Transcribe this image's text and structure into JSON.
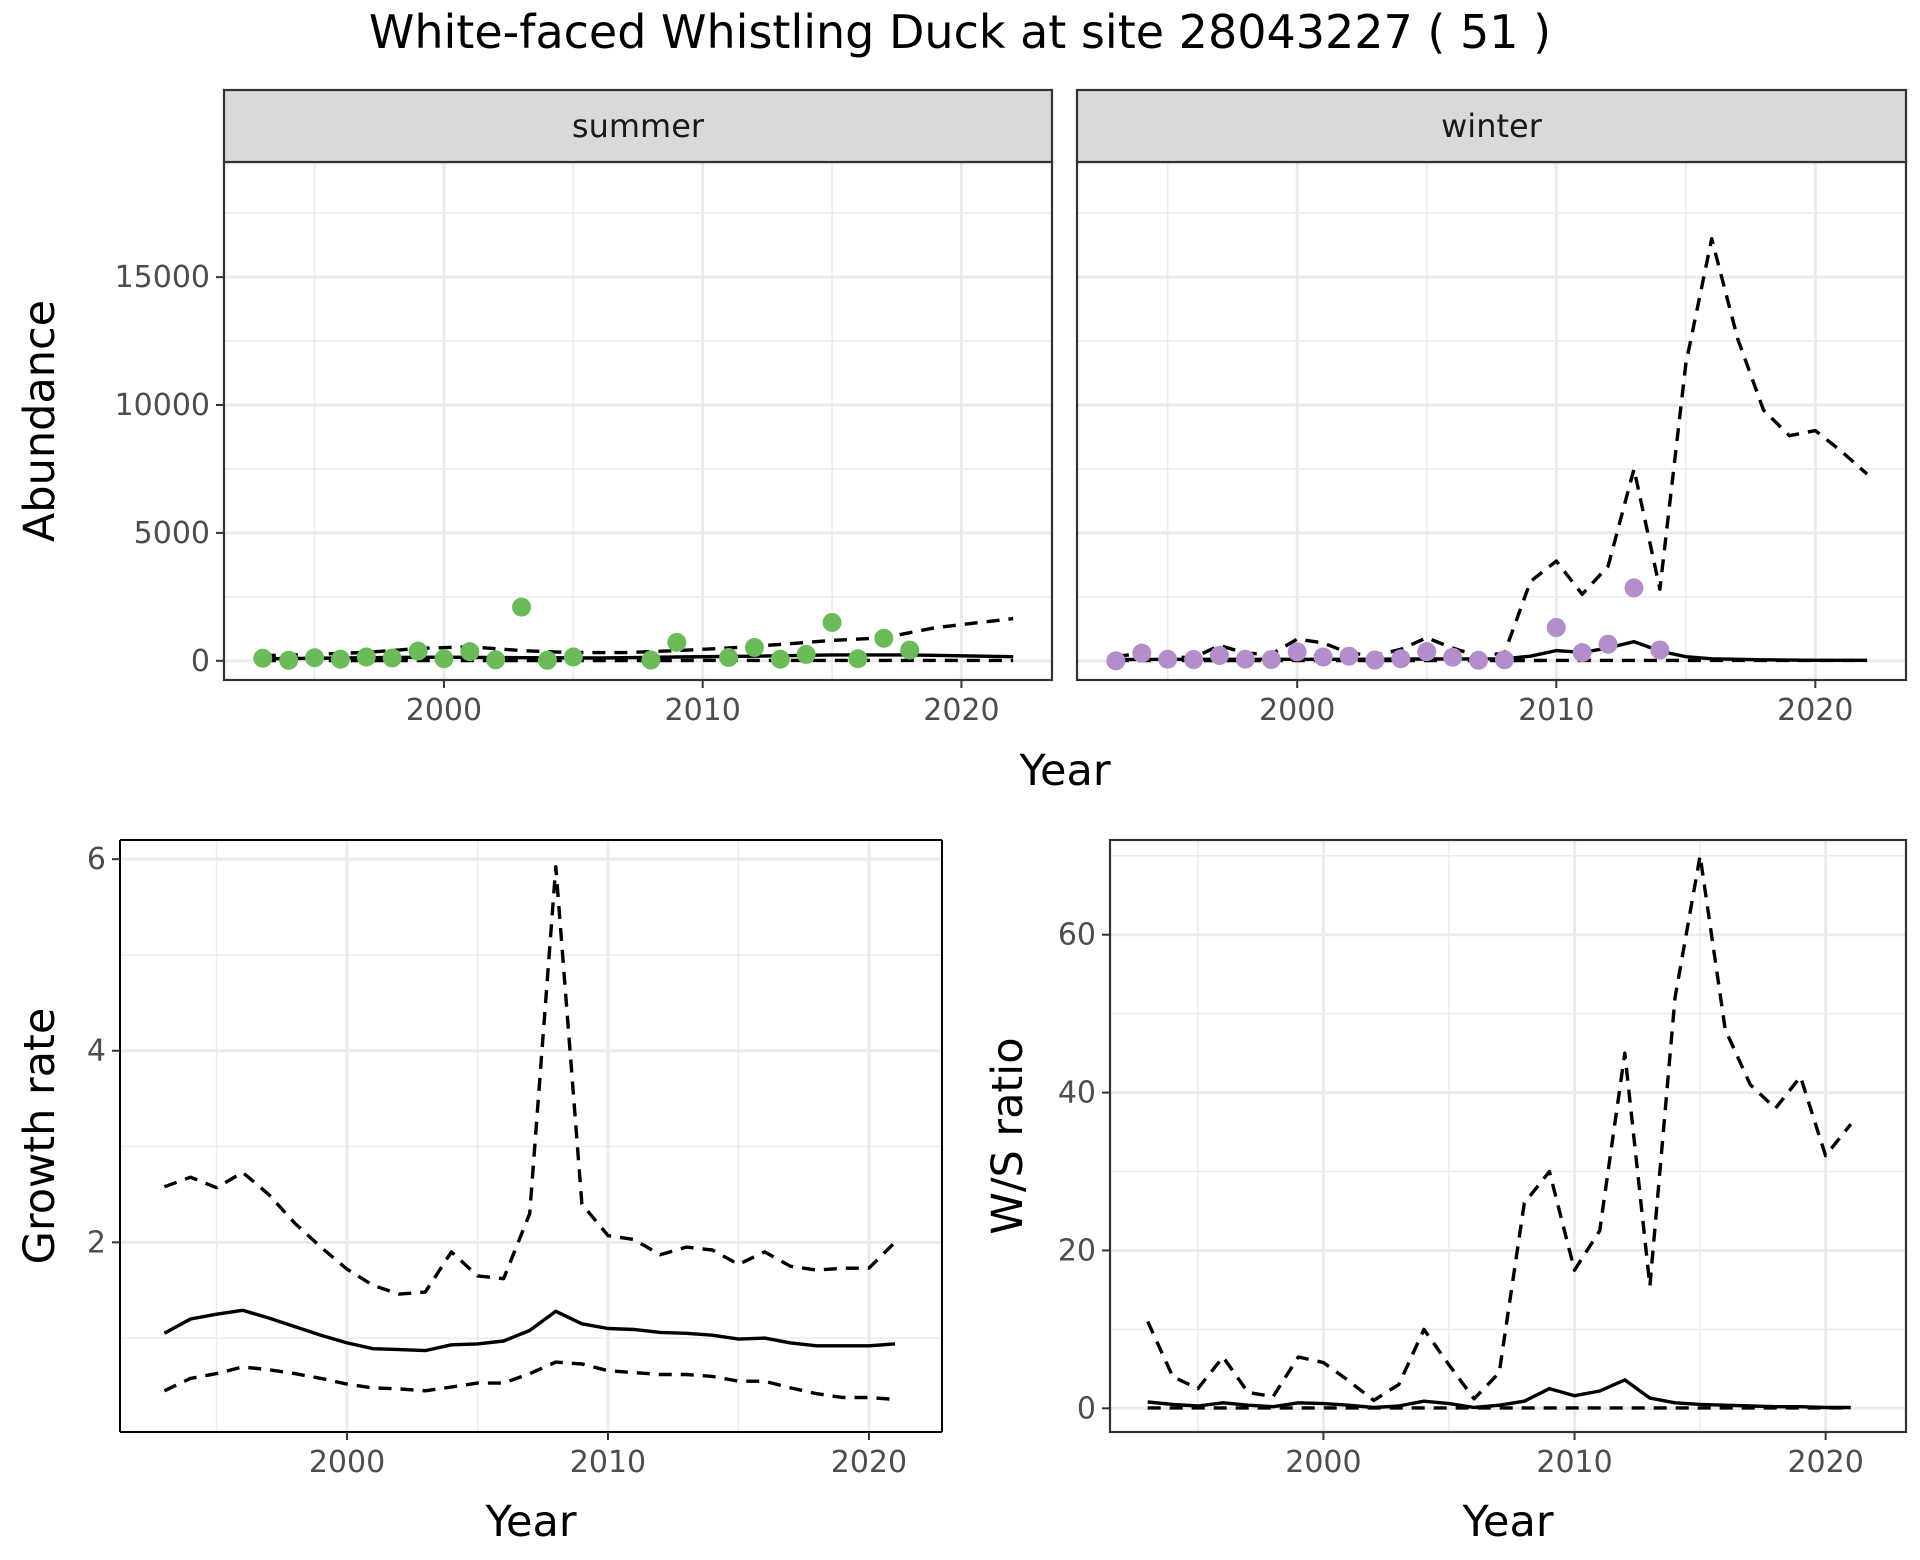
{
  "figure": {
    "title": "White-faced Whistling Duck at site 28043227 ( 51 )"
  },
  "chart_data": [
    {
      "type": "line",
      "facet": "summer",
      "facet_label": "summer",
      "xlabel": "Year",
      "ylabel": "Abundance",
      "xlim": [
        1991.5,
        2023.5
      ],
      "ylim": [
        -750,
        19500
      ],
      "xticks": [
        2000,
        2010,
        2020
      ],
      "yticks": [
        0,
        5000,
        10000,
        15000
      ],
      "point_color": "#6cbb5a",
      "points": {
        "x": [
          1993,
          1994,
          1995,
          1996,
          1997,
          1998,
          1999,
          2000,
          2001,
          2002,
          2003,
          2004,
          2005,
          2008,
          2009,
          2011,
          2012,
          2013,
          2014,
          2015,
          2016,
          2017,
          2018
        ],
        "y": [
          100,
          20,
          120,
          60,
          150,
          110,
          380,
          80,
          360,
          40,
          2100,
          20,
          150,
          30,
          720,
          130,
          520,
          60,
          250,
          1500,
          80,
          880,
          420
        ]
      },
      "series": [
        {
          "style": "solid",
          "x": [
            1993,
            1996,
            1998,
            2000,
            2003,
            2006,
            2009,
            2012,
            2015,
            2018,
            2022
          ],
          "y": [
            80,
            110,
            130,
            140,
            120,
            110,
            150,
            180,
            230,
            230,
            160
          ]
        },
        {
          "style": "dashed",
          "x": [
            1993,
            1995,
            1997,
            1999,
            2001,
            2003,
            2005,
            2007,
            2009,
            2011,
            2013,
            2015,
            2017,
            2019,
            2022
          ],
          "y": [
            200,
            250,
            330,
            480,
            550,
            400,
            320,
            320,
            400,
            500,
            640,
            800,
            900,
            1300,
            1650
          ]
        },
        {
          "style": "dashed",
          "x": [
            1993,
            2022
          ],
          "y": [
            10,
            15
          ]
        }
      ]
    },
    {
      "type": "line",
      "facet": "winter",
      "facet_label": "winter",
      "xlabel": "Year",
      "ylabel": "Abundance",
      "xlim": [
        1991.5,
        2023.5
      ],
      "ylim": [
        -750,
        19500
      ],
      "xticks": [
        2000,
        2010,
        2020
      ],
      "yticks": [
        0,
        5000,
        10000,
        15000
      ],
      "point_color": "#b28fcb",
      "points": {
        "x": [
          1993,
          1994,
          1995,
          1996,
          1997,
          1998,
          1999,
          2000,
          2001,
          2002,
          2003,
          2004,
          2005,
          2006,
          2007,
          2008,
          2010,
          2011,
          2012,
          2013,
          2014
        ],
        "y": [
          0,
          300,
          60,
          50,
          210,
          60,
          50,
          350,
          150,
          180,
          30,
          80,
          360,
          140,
          20,
          40,
          1300,
          320,
          650,
          2850,
          420
        ]
      },
      "series": [
        {
          "style": "solid",
          "x": [
            1993,
            1996,
            1999,
            2002,
            2005,
            2008,
            2009,
            2010,
            2011,
            2012,
            2013,
            2014,
            2015,
            2016,
            2018,
            2020,
            2022
          ],
          "y": [
            50,
            60,
            60,
            60,
            70,
            80,
            180,
            400,
            330,
            500,
            750,
            380,
            160,
            80,
            40,
            20,
            20
          ]
        },
        {
          "style": "dashed",
          "x": [
            1993,
            1994,
            1995,
            1996,
            1997,
            1998,
            1999,
            2000,
            2001,
            2002,
            2003,
            2004,
            2005,
            2006,
            2007,
            2008,
            2009,
            2010,
            2011,
            2012,
            2013,
            2014,
            2015,
            2016,
            2017,
            2018,
            2019,
            2020,
            2021,
            2022
          ],
          "y": [
            180,
            280,
            150,
            120,
            600,
            300,
            250,
            850,
            700,
            300,
            200,
            450,
            900,
            500,
            180,
            300,
            3100,
            3900,
            2600,
            3700,
            7500,
            2800,
            11600,
            16500,
            12600,
            9800,
            8800,
            9000,
            8200,
            7300
          ]
        },
        {
          "style": "dashed",
          "x": [
            1993,
            2022
          ],
          "y": [
            10,
            15
          ]
        }
      ]
    },
    {
      "type": "line",
      "xlabel": "Year",
      "ylabel": "Growth rate",
      "xlim": [
        1991.3,
        2022.8
      ],
      "ylim": [
        0.02,
        6.2
      ],
      "xticks": [
        2000,
        2010,
        2020
      ],
      "yticks": [
        2,
        4,
        6
      ],
      "series": [
        {
          "style": "solid",
          "x": [
            1993,
            1994,
            1995,
            1996,
            1997,
            1998,
            1999,
            2000,
            2001,
            2002,
            2003,
            2004,
            2005,
            2006,
            2007,
            2008,
            2009,
            2010,
            2011,
            2012,
            2013,
            2014,
            2015,
            2016,
            2017,
            2018,
            2019,
            2020,
            2021
          ],
          "y": [
            1.05,
            1.2,
            1.25,
            1.29,
            1.21,
            1.12,
            1.03,
            0.95,
            0.89,
            0.88,
            0.87,
            0.93,
            0.94,
            0.97,
            1.08,
            1.28,
            1.15,
            1.1,
            1.09,
            1.06,
            1.05,
            1.03,
            0.99,
            1.0,
            0.95,
            0.92,
            0.92,
            0.92,
            0.94
          ]
        },
        {
          "style": "dashed",
          "x": [
            1993,
            1994,
            1995,
            1996,
            1997,
            1998,
            1999,
            2000,
            2001,
            2002,
            2003,
            2004,
            2005,
            2006,
            2007,
            2008,
            2009,
            2010,
            2011,
            2012,
            2013,
            2014,
            2015,
            2016,
            2017,
            2018,
            2019,
            2020,
            2021
          ],
          "y": [
            2.58,
            2.68,
            2.57,
            2.73,
            2.5,
            2.2,
            1.95,
            1.72,
            1.55,
            1.46,
            1.48,
            1.9,
            1.65,
            1.62,
            2.3,
            5.92,
            2.4,
            2.07,
            2.03,
            1.87,
            1.95,
            1.92,
            1.77,
            1.9,
            1.75,
            1.71,
            1.73,
            1.73,
            2.0
          ]
        },
        {
          "style": "dashed",
          "x": [
            1993,
            1994,
            1995,
            1996,
            1997,
            1998,
            1999,
            2000,
            2001,
            2002,
            2003,
            2004,
            2005,
            2006,
            2007,
            2008,
            2009,
            2010,
            2011,
            2012,
            2013,
            2014,
            2015,
            2016,
            2017,
            2018,
            2019,
            2020,
            2021
          ],
          "y": [
            0.45,
            0.58,
            0.63,
            0.7,
            0.67,
            0.63,
            0.58,
            0.52,
            0.48,
            0.47,
            0.45,
            0.49,
            0.53,
            0.53,
            0.63,
            0.75,
            0.73,
            0.66,
            0.64,
            0.62,
            0.62,
            0.6,
            0.55,
            0.55,
            0.48,
            0.42,
            0.38,
            0.38,
            0.36
          ]
        }
      ]
    },
    {
      "type": "line",
      "xlabel": "Year",
      "ylabel": "W/S ratio",
      "xlim": [
        1991.5,
        2023.2
      ],
      "ylim": [
        -3.0,
        72.0
      ],
      "xticks": [
        2000,
        2010,
        2020
      ],
      "yticks": [
        0,
        20,
        40,
        60
      ],
      "series": [
        {
          "style": "solid",
          "x": [
            1993,
            1994,
            1995,
            1996,
            1997,
            1998,
            1999,
            2000,
            2001,
            2002,
            2003,
            2004,
            2005,
            2006,
            2007,
            2008,
            2009,
            2010,
            2011,
            2012,
            2013,
            2014,
            2015,
            2016,
            2017,
            2018,
            2019,
            2020,
            2021
          ],
          "y": [
            0.8,
            0.5,
            0.3,
            0.7,
            0.4,
            0.2,
            0.7,
            0.6,
            0.4,
            0.1,
            0.3,
            0.9,
            0.6,
            0.1,
            0.4,
            0.9,
            2.5,
            1.6,
            2.2,
            3.6,
            1.3,
            0.7,
            0.5,
            0.4,
            0.3,
            0.2,
            0.2,
            0.1,
            0.1
          ]
        },
        {
          "style": "dashed",
          "x": [
            1993,
            1994,
            1995,
            1996,
            1997,
            1998,
            1999,
            2000,
            2001,
            2002,
            2003,
            2004,
            2005,
            2006,
            2007,
            2008,
            2009,
            2010,
            2011,
            2012,
            2013,
            2014,
            2015,
            2016,
            2017,
            2018,
            2019,
            2020,
            2021
          ],
          "y": [
            11,
            4,
            2.5,
            6.5,
            2,
            1.5,
            6.5,
            5.8,
            3.5,
            1,
            3,
            10,
            5.5,
            1.2,
            4.5,
            26,
            30,
            17.5,
            22.5,
            45,
            15.5,
            52,
            70,
            48,
            41,
            38,
            42,
            32,
            36
          ]
        },
        {
          "style": "dashed",
          "x": [
            1993,
            2021
          ],
          "y": [
            0.05,
            0.05
          ]
        }
      ]
    }
  ]
}
